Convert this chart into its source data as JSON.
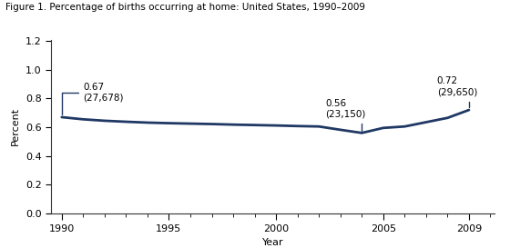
{
  "title": "Figure 1. Percentage of births occurring at home: United States, 1990–2009",
  "xlabel": "Year",
  "ylabel": "Percent",
  "line_color": "#1f3864",
  "line_width": 2.0,
  "background_color": "#ffffff",
  "years": [
    1990,
    1991,
    1992,
    1993,
    1994,
    1995,
    1996,
    1997,
    1998,
    1999,
    2000,
    2001,
    2002,
    2003,
    2004,
    2005,
    2006,
    2007,
    2008,
    2009
  ],
  "values": [
    0.67,
    0.655,
    0.645,
    0.638,
    0.632,
    0.628,
    0.625,
    0.622,
    0.618,
    0.615,
    0.612,
    0.608,
    0.605,
    0.582,
    0.56,
    0.595,
    0.605,
    0.635,
    0.665,
    0.72
  ],
  "ylim": [
    0.0,
    1.21
  ],
  "yticks": [
    0.0,
    0.2,
    0.4,
    0.6,
    0.8,
    1.0,
    1.2
  ],
  "xticks": [
    1990,
    1995,
    2000,
    2005,
    2009
  ],
  "title_fontsize": 7.5,
  "axis_label_fontsize": 8,
  "tick_fontsize": 8,
  "annotation_fontsize": 7.5,
  "ann_line_color": "#1f3864"
}
